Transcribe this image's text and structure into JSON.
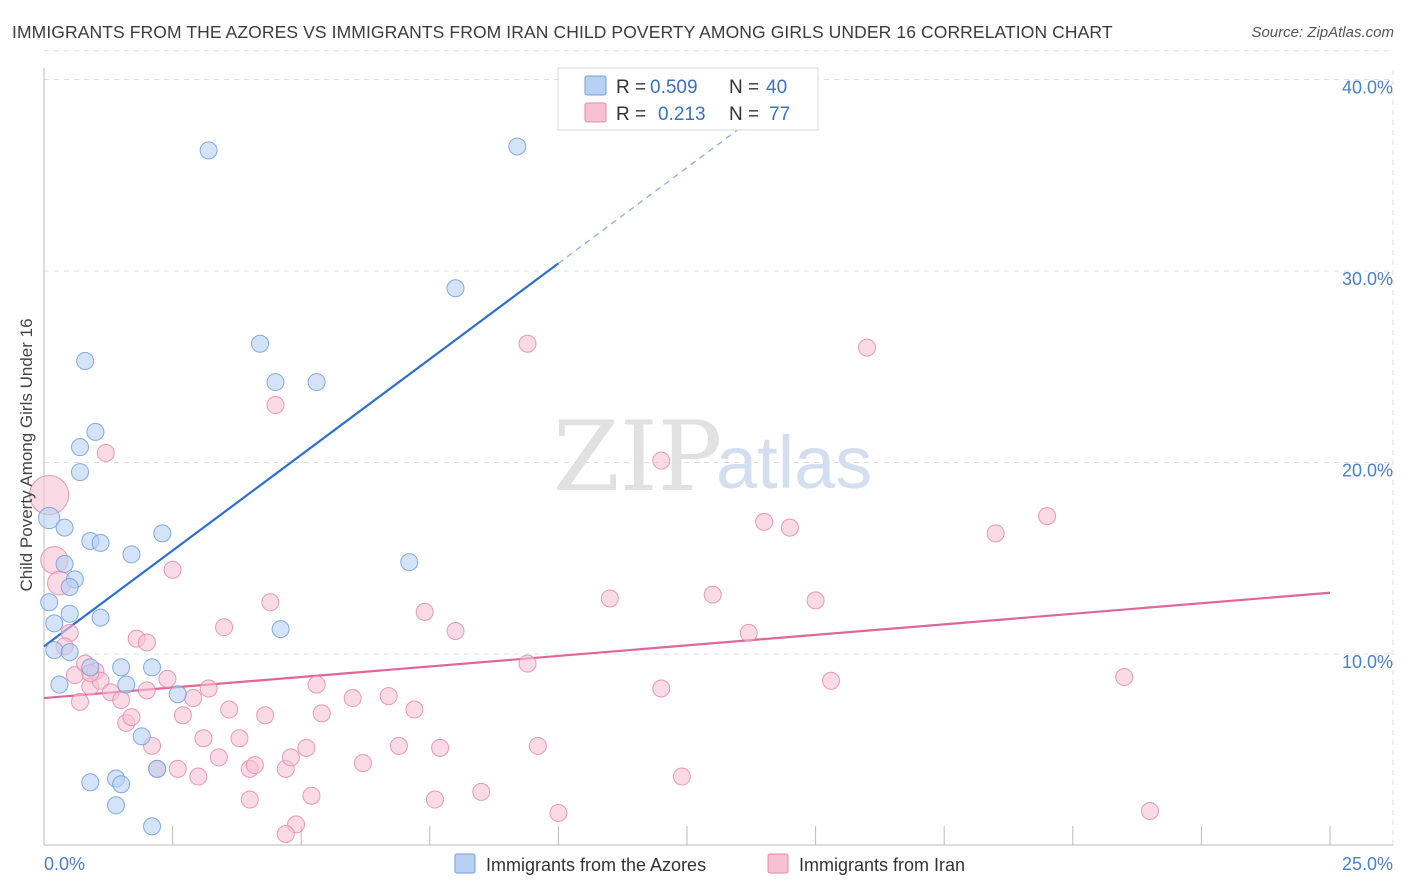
{
  "header": {
    "title": "IMMIGRANTS FROM THE AZORES VS IMMIGRANTS FROM IRAN CHILD POVERTY AMONG GIRLS UNDER 16 CORRELATION CHART",
    "source": "Source: ZipAtlas.com"
  },
  "watermark": {
    "zip": "ZIP",
    "atlas": "atlas"
  },
  "legend_top": {
    "azores": {
      "r_label": "R =",
      "r_value": "0.509",
      "n_label": "N =",
      "n_value": "40"
    },
    "iran": {
      "r_label": "R =",
      "r_value": "0.213",
      "n_label": "N =",
      "n_value": "77"
    }
  },
  "legend_bottom": {
    "azores": "Immigrants from the Azores",
    "iran": "Immigrants from Iran"
  },
  "colors": {
    "azores_fill": "#b7d0f3",
    "azores_stroke": "#6f9fdb",
    "azores_line": "#2d6fd0",
    "iran_fill": "#f6c2d3",
    "iran_stroke": "#e58aa8",
    "iran_line": "#e0669a",
    "tick_text": "#4a7fd0",
    "grid": "#dddddd"
  },
  "chart_data": {
    "type": "scatter",
    "title": "IMMIGRANTS FROM THE AZORES VS IMMIGRANTS FROM IRAN CHILD POVERTY AMONG GIRLS UNDER 16 CORRELATION CHART",
    "xlabel": "",
    "ylabel": "Child Poverty Among Girls Under 16",
    "xlim": [
      0,
      25
    ],
    "ylim": [
      0,
      42
    ],
    "x_tick_labels": [
      "0.0%",
      "25.0%"
    ],
    "y_ticks": [
      10,
      20,
      30,
      40
    ],
    "y_tick_labels": [
      "10.0%",
      "20.0%",
      "30.0%",
      "40.0%"
    ],
    "series": [
      {
        "name": "Immigrants from the Azores",
        "r": 0.509,
        "n": 40,
        "trend": {
          "x0": 0.0,
          "y0": 10.4,
          "x1": 10.0,
          "y1": 30.4,
          "dashed_to_x": 14.0,
          "dashed_to_y": 38.4
        },
        "points": [
          [
            3.2,
            36.3
          ],
          [
            9.2,
            36.5
          ],
          [
            8.0,
            29.1
          ],
          [
            4.2,
            26.2
          ],
          [
            0.8,
            25.3
          ],
          [
            4.5,
            24.2
          ],
          [
            5.3,
            24.2
          ],
          [
            1.0,
            21.6
          ],
          [
            0.7,
            20.8
          ],
          [
            0.7,
            19.5
          ],
          [
            0.1,
            17.1
          ],
          [
            0.4,
            16.6
          ],
          [
            0.9,
            15.9
          ],
          [
            1.1,
            15.8
          ],
          [
            2.3,
            16.3
          ],
          [
            1.7,
            15.2
          ],
          [
            7.1,
            14.8
          ],
          [
            0.4,
            14.7
          ],
          [
            0.6,
            13.9
          ],
          [
            0.5,
            13.5
          ],
          [
            0.1,
            12.7
          ],
          [
            0.5,
            12.1
          ],
          [
            1.1,
            11.9
          ],
          [
            0.2,
            11.6
          ],
          [
            4.6,
            11.3
          ],
          [
            0.2,
            10.2
          ],
          [
            0.5,
            10.1
          ],
          [
            0.9,
            9.3
          ],
          [
            1.5,
            9.3
          ],
          [
            2.1,
            9.3
          ],
          [
            0.3,
            8.4
          ],
          [
            1.6,
            8.4
          ],
          [
            2.6,
            7.9
          ],
          [
            1.9,
            5.7
          ],
          [
            2.2,
            4.0
          ],
          [
            0.9,
            3.3
          ],
          [
            1.4,
            3.5
          ],
          [
            1.5,
            3.2
          ],
          [
            1.4,
            2.1
          ],
          [
            2.1,
            1.0
          ]
        ],
        "point_sizes": [
          1,
          1,
          1,
          1,
          1,
          1,
          1,
          1,
          1,
          1,
          1.25,
          1,
          1,
          1,
          1,
          1,
          1,
          1,
          1,
          1,
          1,
          1,
          1,
          1,
          1,
          1,
          1,
          1,
          1,
          1,
          1,
          1,
          1,
          1,
          1,
          1,
          1,
          1,
          1,
          1
        ]
      },
      {
        "name": "Immigrants from Iran",
        "r": 0.213,
        "n": 77,
        "trend": {
          "x0": 0.0,
          "y0": 7.7,
          "x1": 25.0,
          "y1": 13.2
        },
        "points": [
          [
            0.1,
            18.3
          ],
          [
            0.2,
            14.9
          ],
          [
            0.3,
            13.7
          ],
          [
            0.5,
            11.1
          ],
          [
            0.4,
            10.4
          ],
          [
            0.6,
            8.9
          ],
          [
            0.8,
            9.5
          ],
          [
            0.9,
            8.3
          ],
          [
            1.0,
            9.1
          ],
          [
            1.1,
            8.6
          ],
          [
            1.3,
            8.0
          ],
          [
            1.5,
            7.6
          ],
          [
            1.6,
            6.4
          ],
          [
            1.7,
            6.7
          ],
          [
            1.8,
            10.8
          ],
          [
            2.0,
            10.6
          ],
          [
            2.0,
            8.1
          ],
          [
            2.1,
            5.2
          ],
          [
            2.2,
            4.0
          ],
          [
            2.4,
            8.7
          ],
          [
            2.5,
            14.4
          ],
          [
            2.6,
            4.0
          ],
          [
            2.7,
            6.8
          ],
          [
            2.9,
            7.7
          ],
          [
            3.0,
            3.6
          ],
          [
            3.1,
            5.6
          ],
          [
            3.2,
            8.2
          ],
          [
            3.4,
            4.6
          ],
          [
            3.5,
            11.4
          ],
          [
            3.6,
            7.1
          ],
          [
            3.8,
            5.6
          ],
          [
            4.0,
            4.0
          ],
          [
            4.1,
            4.2
          ],
          [
            4.0,
            2.4
          ],
          [
            4.3,
            6.8
          ],
          [
            4.4,
            12.7
          ],
          [
            4.5,
            23.0
          ],
          [
            4.7,
            4.0
          ],
          [
            4.8,
            4.6
          ],
          [
            4.9,
            1.1
          ],
          [
            4.7,
            0.6
          ],
          [
            5.1,
            5.1
          ],
          [
            5.2,
            2.6
          ],
          [
            5.3,
            8.4
          ],
          [
            5.4,
            6.9
          ],
          [
            6.0,
            7.7
          ],
          [
            6.2,
            4.3
          ],
          [
            6.7,
            7.8
          ],
          [
            6.9,
            5.2
          ],
          [
            7.2,
            7.1
          ],
          [
            7.4,
            12.2
          ],
          [
            7.6,
            2.4
          ],
          [
            7.7,
            5.1
          ],
          [
            8.0,
            11.2
          ],
          [
            8.5,
            2.8
          ],
          [
            9.4,
            9.5
          ],
          [
            9.4,
            26.2
          ],
          [
            9.6,
            5.2
          ],
          [
            10.0,
            1.7
          ],
          [
            11.0,
            12.9
          ],
          [
            12.0,
            20.1
          ],
          [
            12.0,
            8.2
          ],
          [
            12.4,
            3.6
          ],
          [
            13.0,
            13.1
          ],
          [
            13.7,
            11.1
          ],
          [
            14.0,
            16.9
          ],
          [
            14.5,
            16.6
          ],
          [
            15.0,
            12.8
          ],
          [
            15.3,
            8.6
          ],
          [
            16.0,
            26.0
          ],
          [
            18.5,
            16.3
          ],
          [
            19.5,
            17.2
          ],
          [
            21.0,
            8.8
          ],
          [
            21.5,
            1.8
          ],
          [
            1.2,
            20.5
          ],
          [
            0.9,
            9.0
          ],
          [
            0.7,
            7.5
          ]
        ],
        "point_sizes": [
          2.3,
          1.6,
          1.4,
          1,
          1,
          1,
          1,
          1,
          1,
          1,
          1,
          1,
          1,
          1,
          1,
          1,
          1,
          1,
          1,
          1,
          1,
          1,
          1,
          1,
          1,
          1,
          1,
          1,
          1,
          1,
          1,
          1,
          1,
          1,
          1,
          1,
          1,
          1,
          1,
          1,
          1,
          1,
          1,
          1,
          1,
          1,
          1,
          1,
          1,
          1,
          1,
          1,
          1,
          1,
          1,
          1,
          1,
          1,
          1,
          1,
          1,
          1,
          1,
          1,
          1,
          1,
          1,
          1,
          1,
          1,
          1,
          1,
          1,
          1,
          1,
          1,
          1
        ]
      }
    ]
  }
}
